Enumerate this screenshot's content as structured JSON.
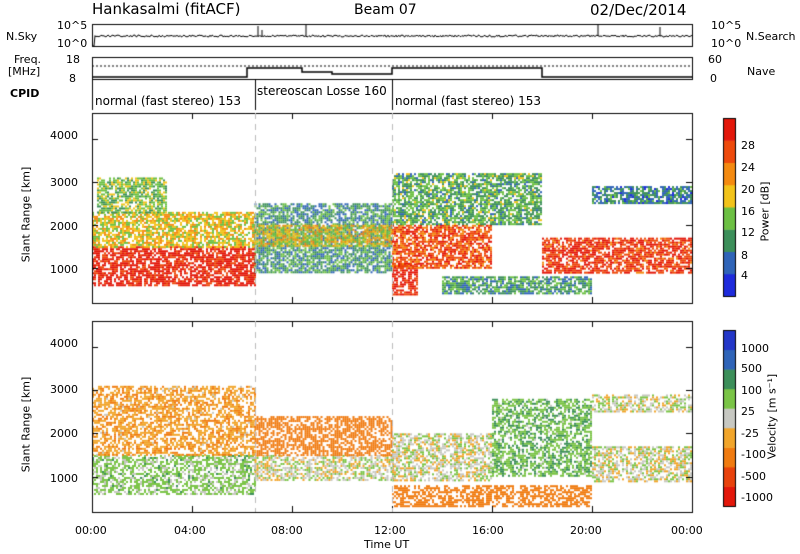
{
  "header": {
    "station": "Hankasalmi (fitACF)",
    "beam": "Beam 07",
    "date": "02/Dec/2014"
  },
  "strip": {
    "nsky_label": "N.Sky",
    "nsky_top": "10^5",
    "nsky_bot": "10^0",
    "nsearch_label": "N.Search",
    "nsearch_top": "10^5",
    "nsearch_bot": "10^0",
    "freq_label_1": "Freq.",
    "freq_label_2": "[MHz]",
    "freq_top": "18",
    "freq_bot": "8",
    "nave_label": "Nave",
    "nave_top": "60",
    "nave_bot": "0",
    "cpid_label": "CPID"
  },
  "cpid_segments": [
    {
      "label": "normal (fast stereo) 153",
      "start": 0,
      "end": 6.5
    },
    {
      "label": "stereoscan Losse 160",
      "start": 6.5,
      "end": 12
    },
    {
      "label": "normal (fast stereo) 153",
      "start": 12,
      "end": 24
    }
  ],
  "axes": {
    "x_ticks": [
      "00:00",
      "04:00",
      "08:00",
      "12:00",
      "16:00",
      "20:00",
      "00:00"
    ],
    "x_tick_hours": [
      0,
      4,
      8,
      12,
      16,
      20,
      24
    ],
    "x_label": "Time UT",
    "y_ticks": [
      "1000",
      "2000",
      "3000",
      "4000"
    ],
    "y_label": "Slant Range [km]",
    "y_range": [
      180,
      4600
    ]
  },
  "colorbars": {
    "power": {
      "label": "Power [dB]",
      "ticks": [
        "4",
        "8",
        "12",
        "16",
        "20",
        "24",
        "28"
      ],
      "colors": [
        "#1e2bdc",
        "#2f64b8",
        "#3c8f5a",
        "#6cc043",
        "#f2c31a",
        "#f48a10",
        "#ee4a0c",
        "#e3170a"
      ]
    },
    "velocity": {
      "label": "Velocity [m s⁻¹]",
      "ticks": [
        "1000",
        "500",
        "100",
        "25",
        "-25",
        "-100",
        "-500",
        "-1000"
      ],
      "colors": [
        "#2337c8",
        "#2f64b8",
        "#3c8f5a",
        "#7ac446",
        "#c7c8c2",
        "#f1a52a",
        "#f07b10",
        "#e8420c",
        "#e3170a"
      ]
    }
  },
  "chart_data": [
    {
      "type": "heatmap",
      "title": "Power",
      "xlabel": "",
      "ylabel": "Slant Range [km]",
      "xlim_hours": [
        0,
        24
      ],
      "ylim": [
        180,
        4600
      ],
      "clim": [
        0,
        32
      ],
      "colorbar_label": "Power [dB]",
      "regions": [
        {
          "t": [
            0,
            6.5
          ],
          "r": [
            600,
            1500
          ],
          "value": 30
        },
        {
          "t": [
            0,
            6.5
          ],
          "r": [
            1500,
            2300
          ],
          "value": 18
        },
        {
          "t": [
            0.2,
            3
          ],
          "r": [
            2300,
            3100
          ],
          "value": 14
        },
        {
          "t": [
            6.5,
            12
          ],
          "r": [
            900,
            2500
          ],
          "value": 10
        },
        {
          "t": [
            6.5,
            12
          ],
          "r": [
            1500,
            2000
          ],
          "value": 18
        },
        {
          "t": [
            12,
            13
          ],
          "r": [
            400,
            1100
          ],
          "value": 30
        },
        {
          "t": [
            12,
            16
          ],
          "r": [
            1000,
            2000
          ],
          "value": 26
        },
        {
          "t": [
            12,
            18
          ],
          "r": [
            2000,
            3200
          ],
          "value": 12
        },
        {
          "t": [
            14,
            20
          ],
          "r": [
            400,
            800
          ],
          "value": 10
        },
        {
          "t": [
            18,
            24
          ],
          "r": [
            900,
            1700
          ],
          "value": 28
        },
        {
          "t": [
            20,
            24
          ],
          "r": [
            2500,
            2900
          ],
          "value": 8
        }
      ]
    },
    {
      "type": "heatmap",
      "title": "Velocity",
      "xlabel": "Time UT",
      "ylabel": "Slant Range [km]",
      "xlim_hours": [
        0,
        24
      ],
      "ylim": [
        180,
        4600
      ],
      "clim": [
        -1000,
        1000
      ],
      "colorbar_label": "Velocity [m s⁻¹]",
      "regions": [
        {
          "t": [
            0,
            6.5
          ],
          "r": [
            600,
            1500
          ],
          "value": 50
        },
        {
          "t": [
            0,
            6.5
          ],
          "r": [
            1500,
            3100
          ],
          "value": -80
        },
        {
          "t": [
            6.5,
            12
          ],
          "r": [
            900,
            1500
          ],
          "value": 0
        },
        {
          "t": [
            6.5,
            12
          ],
          "r": [
            1500,
            2400
          ],
          "value": -300
        },
        {
          "t": [
            12,
            16
          ],
          "r": [
            900,
            2000
          ],
          "value": 0
        },
        {
          "t": [
            12,
            20
          ],
          "r": [
            300,
            800
          ],
          "value": -200
        },
        {
          "t": [
            16,
            20
          ],
          "r": [
            1000,
            2800
          ],
          "value": 80
        },
        {
          "t": [
            20,
            24
          ],
          "r": [
            900,
            1700
          ],
          "value": 0
        },
        {
          "t": [
            20,
            24
          ],
          "r": [
            2500,
            2900
          ],
          "value": 5
        }
      ]
    }
  ]
}
